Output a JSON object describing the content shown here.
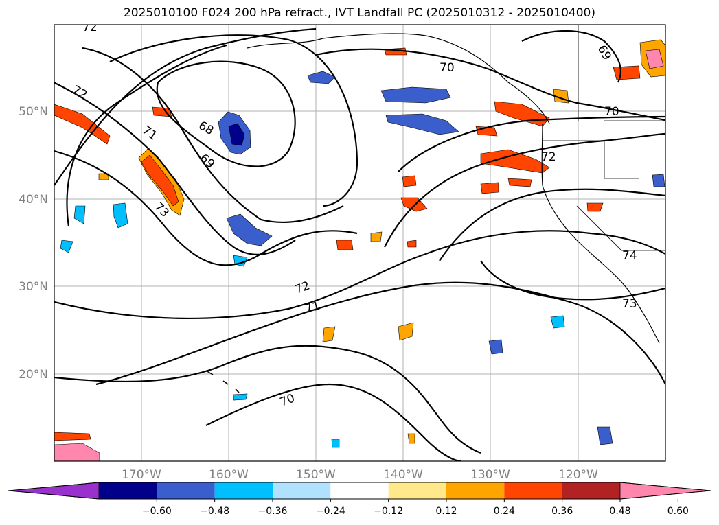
{
  "title": "2025010100 F024 200 hPa refract., IVT Landfall PC (2025010312 - 2025010400)",
  "map": {
    "lat_ticks": [
      "50°N",
      "40°N",
      "30°N",
      "20°N"
    ],
    "lon_ticks": [
      "170°W",
      "160°W",
      "150°W",
      "140°W",
      "130°W",
      "120°W"
    ],
    "contour_labels": [
      "72",
      "72",
      "71",
      "68",
      "69",
      "73",
      "70",
      "69",
      "70",
      "72",
      "72",
      "71",
      "70",
      "74",
      "73"
    ]
  },
  "colorbar": {
    "tick_labels": [
      "−0.60",
      "−0.48",
      "−0.36",
      "−0.24",
      "−0.12",
      "0.12",
      "0.24",
      "0.36",
      "0.48",
      "0.60"
    ],
    "colors": [
      "#9932cc",
      "#00008b",
      "#3a5fcd",
      "#00bfff",
      "#b0e2ff",
      "#ffffff",
      "#ffe98a",
      "#ffa500",
      "#ff4500",
      "#b22222",
      "#ff86ad"
    ]
  }
}
